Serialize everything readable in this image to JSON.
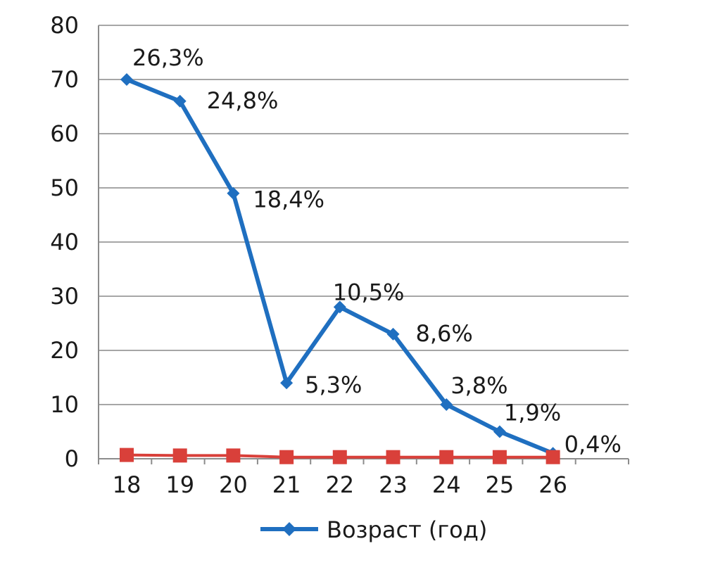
{
  "chart_data": {
    "type": "line",
    "x": [
      18,
      19,
      20,
      21,
      22,
      23,
      24,
      25,
      26
    ],
    "categories": [
      "18",
      "19",
      "20",
      "21",
      "22",
      "23",
      "24",
      "25",
      "26"
    ],
    "ylim": [
      0,
      80
    ],
    "yticks": [
      "0",
      "10",
      "20",
      "30",
      "40",
      "50",
      "60",
      "70",
      "80"
    ],
    "grid": true,
    "legend": "bottom",
    "series": [
      {
        "name": "Возраст (год)",
        "color": "#1f6fc0",
        "marker": "diamond",
        "values": [
          70,
          66,
          49,
          14,
          28,
          23,
          10,
          5,
          1
        ],
        "labels": [
          "26,3%",
          "24,8%",
          "18,4%",
          "5,3%",
          "10,5%",
          "8,6%",
          "3,8%",
          "1,9%",
          "0,4%"
        ]
      },
      {
        "color": "#d9403a",
        "marker": "square",
        "values": [
          0.7,
          0.6,
          0.6,
          0.3,
          0.3,
          0.3,
          0.3,
          0.3,
          0.3
        ]
      }
    ]
  }
}
